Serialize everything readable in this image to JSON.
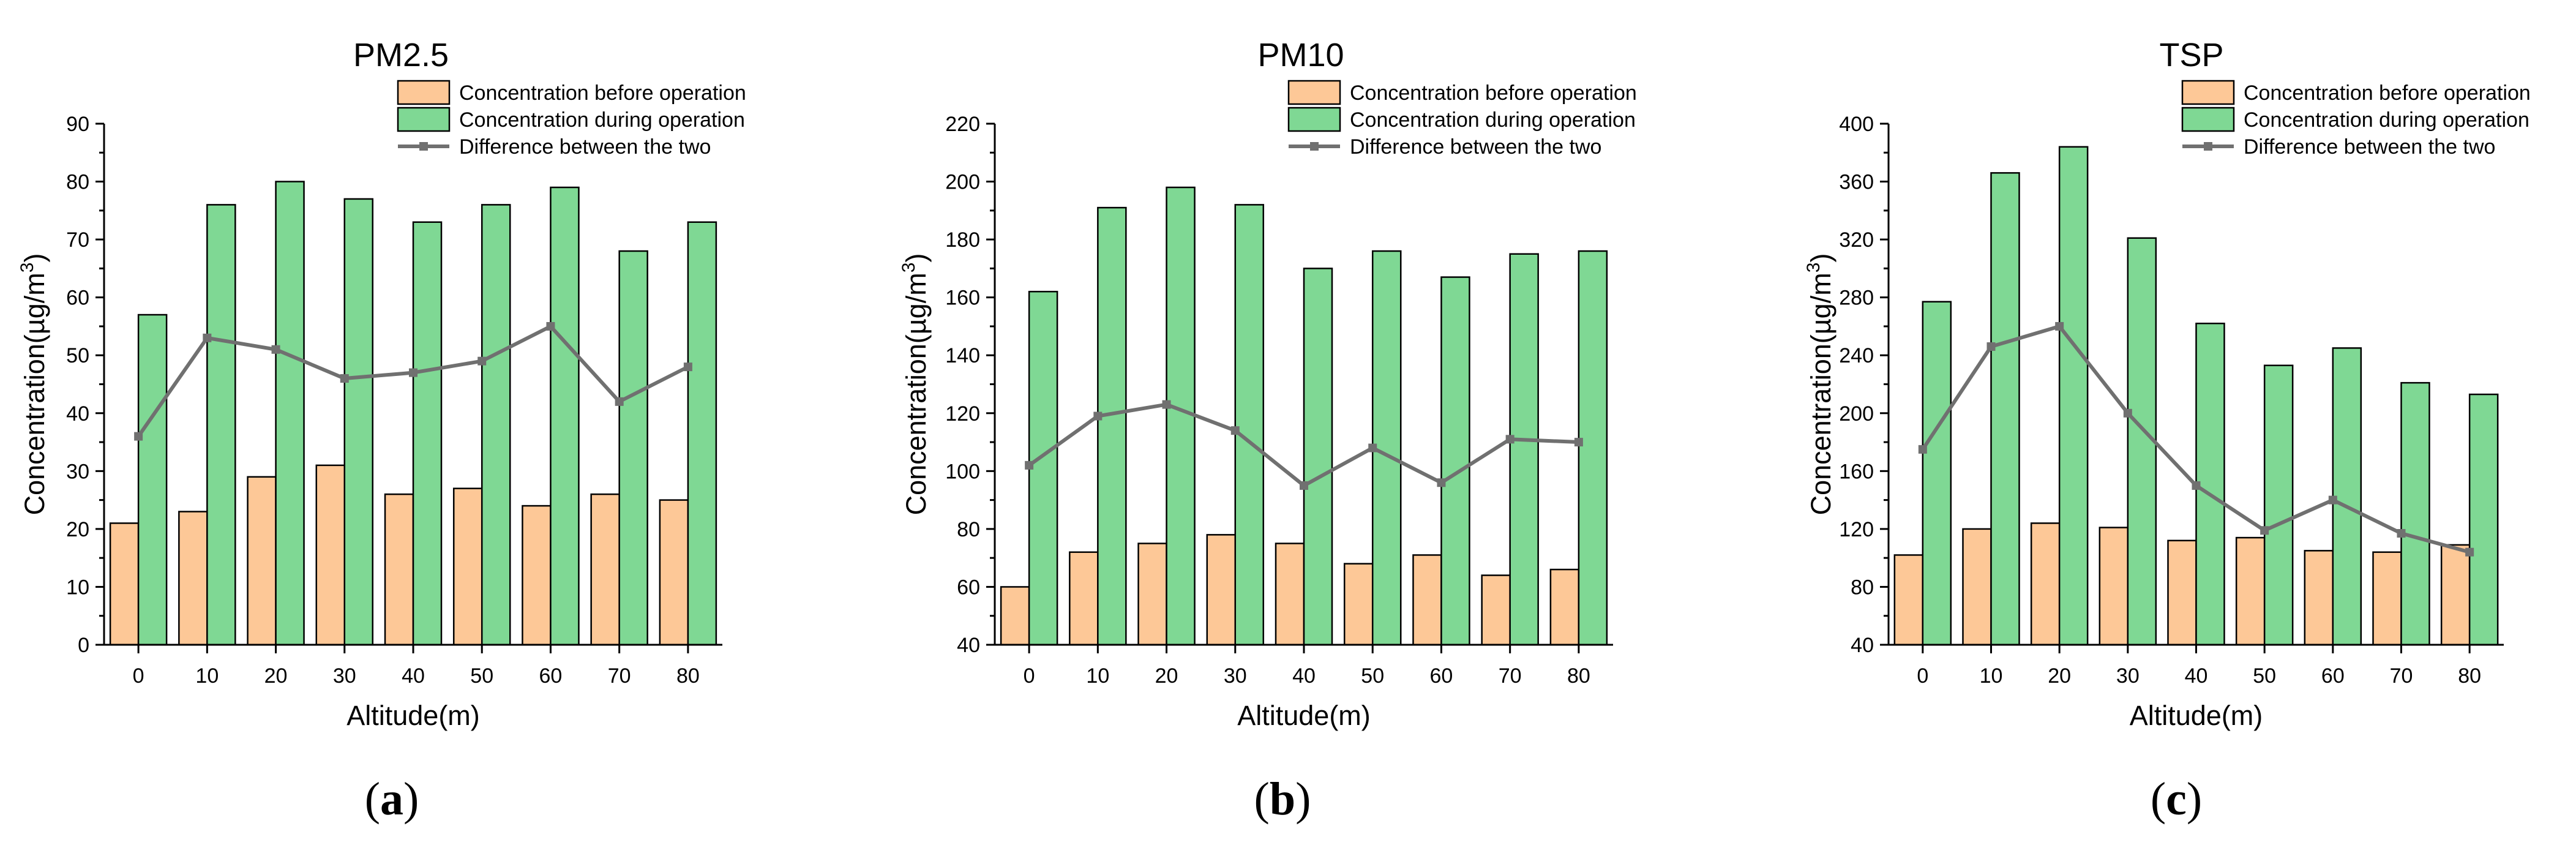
{
  "figure": {
    "captions": [
      "(a)",
      "(b)",
      "(c)"
    ]
  },
  "colors": {
    "before": "#fdc897",
    "during": "#7fd894",
    "difference": "#707070",
    "axis": "#000000"
  },
  "chart_data": [
    {
      "type": "bar",
      "title": "PM2.5",
      "xlabel": "Altitude(m)",
      "ylabel": "Concentration(µg/m3)",
      "categories": [
        "0",
        "10",
        "20",
        "30",
        "40",
        "50",
        "60",
        "70",
        "80"
      ],
      "ylim": [
        0,
        90
      ],
      "yticks": [
        0,
        10,
        20,
        30,
        40,
        50,
        60,
        70,
        80,
        90
      ],
      "legend_position": "top-right",
      "series": [
        {
          "name": "Concentration before operation",
          "kind": "bar",
          "values": [
            21,
            23,
            29,
            31,
            26,
            27,
            24,
            26,
            25
          ]
        },
        {
          "name": "Concentration during operation",
          "kind": "bar",
          "values": [
            57,
            76,
            80,
            77,
            73,
            76,
            79,
            68,
            73
          ]
        },
        {
          "name": "Difference between the two",
          "kind": "line",
          "values": [
            36,
            53,
            51,
            46,
            47,
            49,
            55,
            42,
            48
          ]
        }
      ]
    },
    {
      "type": "bar",
      "title": "PM10",
      "xlabel": "Altitude(m)",
      "ylabel": "Concentration(µg/m3)",
      "categories": [
        "0",
        "10",
        "20",
        "30",
        "40",
        "50",
        "60",
        "70",
        "80"
      ],
      "ylim": [
        40,
        220
      ],
      "yticks": [
        40,
        60,
        80,
        100,
        120,
        140,
        160,
        180,
        200,
        220
      ],
      "legend_position": "top-right",
      "series": [
        {
          "name": "Concentration before operation",
          "kind": "bar",
          "values": [
            60,
            72,
            75,
            78,
            75,
            68,
            71,
            64,
            66
          ]
        },
        {
          "name": "Concentration during operation",
          "kind": "bar",
          "values": [
            162,
            191,
            198,
            192,
            170,
            176,
            167,
            175,
            176
          ]
        },
        {
          "name": "Difference between the two",
          "kind": "line",
          "values": [
            102,
            119,
            123,
            114,
            95,
            108,
            96,
            111,
            110
          ]
        }
      ]
    },
    {
      "type": "bar",
      "title": "TSP",
      "xlabel": "Altitude(m)",
      "ylabel": "Concentration(µg/m3)",
      "categories": [
        "0",
        "10",
        "20",
        "30",
        "40",
        "50",
        "60",
        "70",
        "80"
      ],
      "ylim": [
        40,
        400
      ],
      "yticks": [
        40,
        80,
        120,
        160,
        200,
        240,
        280,
        320,
        360,
        400
      ],
      "legend_position": "top-right",
      "series": [
        {
          "name": "Concentration before operation",
          "kind": "bar",
          "values": [
            102,
            120,
            124,
            121,
            112,
            114,
            105,
            104,
            109
          ]
        },
        {
          "name": "Concentration during operation",
          "kind": "bar",
          "values": [
            277,
            366,
            384,
            321,
            262,
            233,
            245,
            221,
            213
          ]
        },
        {
          "name": "Difference between the two",
          "kind": "line",
          "values": [
            175,
            246,
            260,
            200,
            150,
            119,
            140,
            117,
            104
          ]
        }
      ]
    }
  ]
}
